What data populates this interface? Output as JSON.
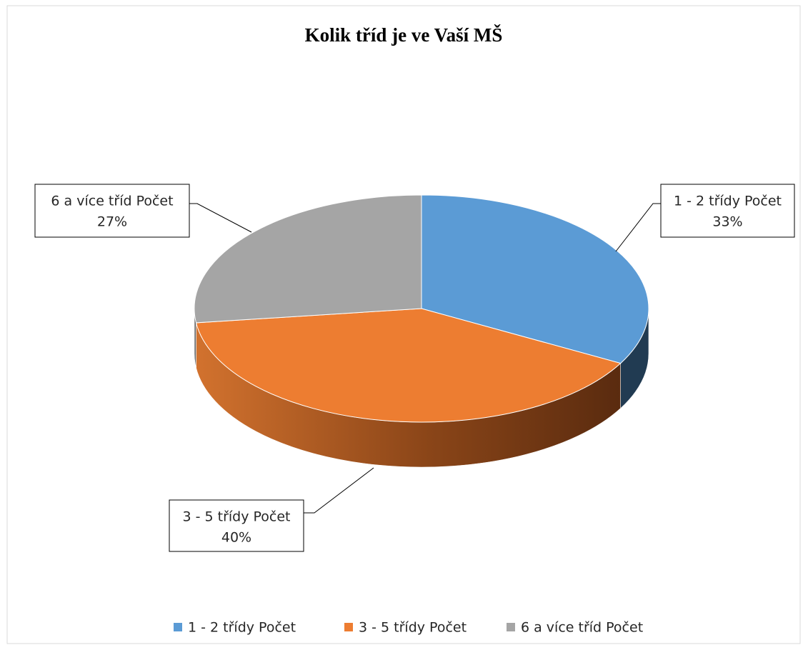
{
  "chart_data": {
    "type": "pie",
    "title": "Kolik tříd je ve Vaší MŠ",
    "categories": [
      "1 - 2 třídy Počet",
      "3 - 5 třídy Počet",
      "6 a více tříd Počet"
    ],
    "values": [
      33,
      40,
      27
    ],
    "value_labels": [
      "33%",
      "40%",
      "27%"
    ],
    "colors": [
      "#5b9bd5",
      "#ed7d31",
      "#a5a5a5"
    ],
    "legend": "bottom"
  }
}
